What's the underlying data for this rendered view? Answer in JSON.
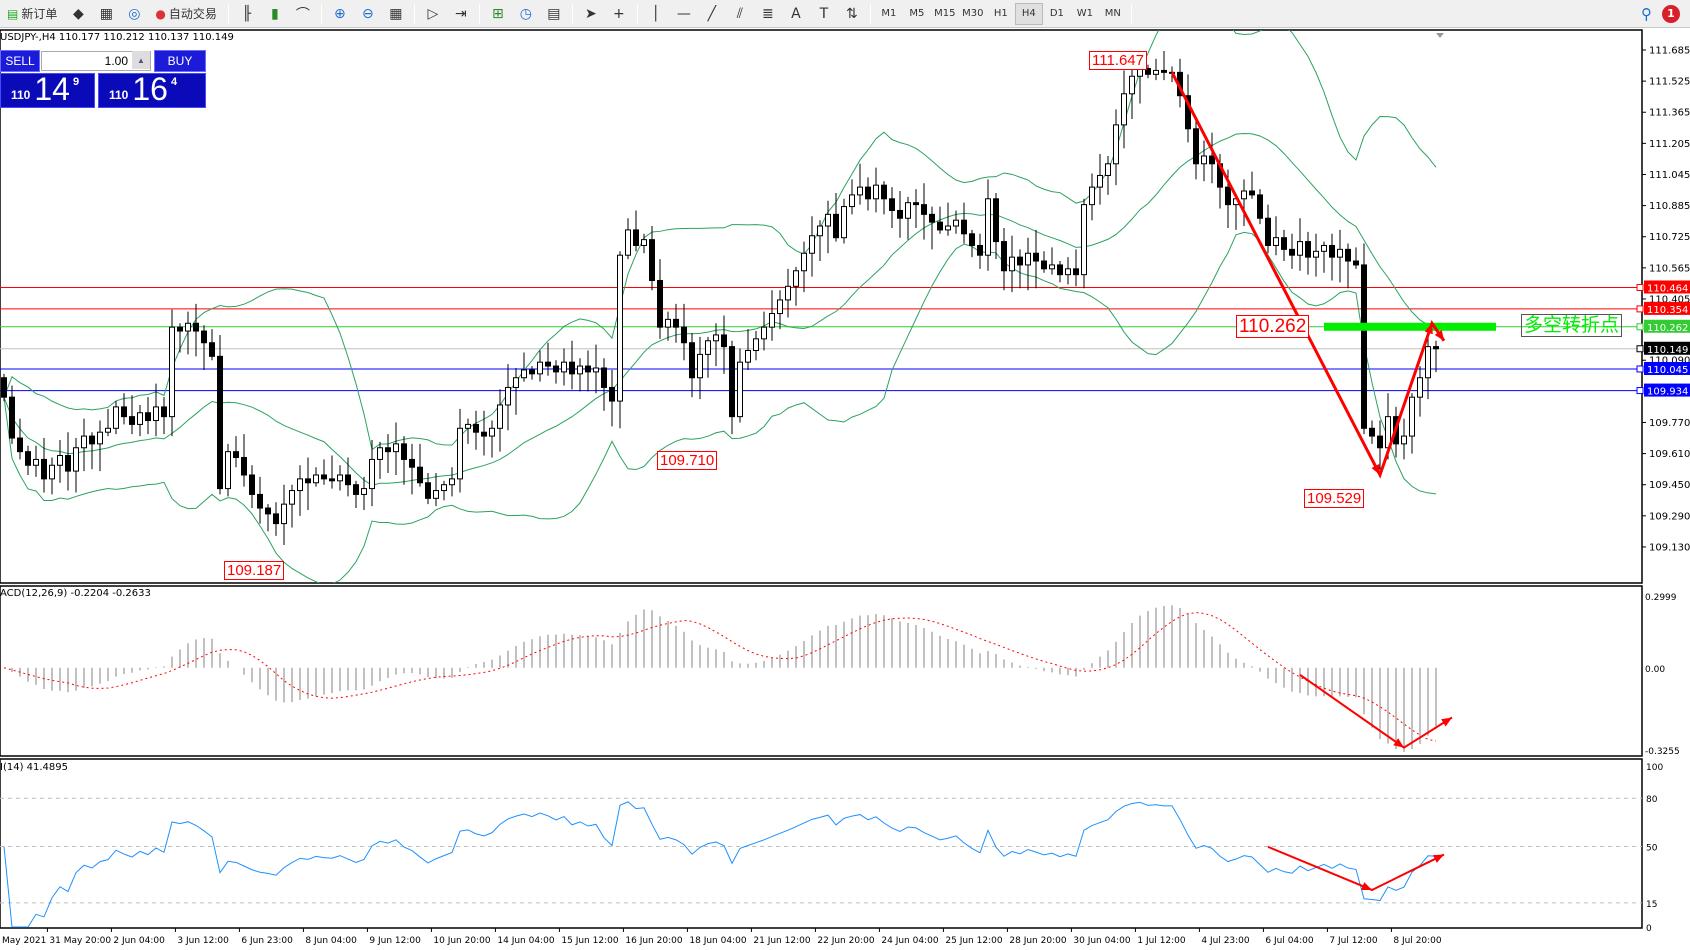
{
  "toolbar": {
    "new_order": "新订单",
    "auto_trading": "自动交易",
    "icons_left": [
      "market-watch-icon",
      "data-window-icon",
      "signals-icon"
    ],
    "icons_mid": [
      "bar-chart-icon",
      "candlestick-icon",
      "line-chart-icon",
      "|",
      "zoom-in-icon",
      "zoom-out-icon",
      "tile-windows-icon",
      "|",
      "auto-scroll-icon",
      "chart-shift-icon",
      "|",
      "indicators-icon",
      "periods-icon",
      "templates-icon",
      "|",
      "cursor-icon",
      "crosshair-icon",
      "|",
      "vertical-line-icon",
      "horizontal-line-icon",
      "trendline-icon",
      "equidistant-channel-icon",
      "fibonacci-icon",
      "text-icon",
      "text-label-icon",
      "arrows-icon"
    ],
    "timeframes": [
      "M1",
      "M5",
      "M15",
      "M30",
      "H1",
      "H4",
      "D1",
      "W1",
      "MN"
    ],
    "active_timeframe": "H4",
    "notification_count": "1"
  },
  "chart": {
    "header": "USDJPY-,H4  110.177 110.212 110.137 110.149",
    "macd_label": "ACD(12,26,9) -0.2204 -0.2633",
    "rsi_label": "I(14) 41.4895"
  },
  "trade_panel": {
    "sell_label": "SELL",
    "buy_label": "BUY",
    "lot": "1.00",
    "sell_prefix": "110",
    "sell_big": "14",
    "sell_sup": "9",
    "buy_prefix": "110",
    "buy_big": "16",
    "buy_sup": "4"
  },
  "chart_data": {
    "type": "candlestick",
    "first_open": 110.0,
    "closes": [
      109.9,
      109.69,
      109.62,
      109.55,
      109.58,
      109.48,
      109.55,
      109.6,
      109.52,
      109.64,
      109.7,
      109.66,
      109.72,
      109.74,
      109.85,
      109.8,
      109.76,
      109.82,
      109.78,
      109.85,
      109.8,
      110.26,
      110.24,
      110.28,
      110.24,
      110.18,
      110.11,
      109.43,
      109.62,
      109.59,
      109.5,
      109.4,
      109.33,
      109.3,
      109.25,
      109.35,
      109.42,
      109.48,
      109.46,
      109.5,
      109.48,
      109.47,
      109.5,
      109.45,
      109.4,
      109.43,
      109.58,
      109.64,
      109.62,
      109.66,
      109.58,
      109.54,
      109.46,
      109.38,
      109.42,
      109.45,
      109.48,
      109.74,
      109.76,
      109.72,
      109.7,
      109.74,
      109.86,
      109.95,
      110.0,
      110.04,
      110.02,
      110.08,
      110.06,
      110.03,
      110.08,
      110.02,
      110.06,
      110.03,
      110.05,
      109.95,
      109.88,
      110.63,
      110.76,
      110.68,
      110.71,
      110.5,
      110.26,
      110.3,
      110.26,
      110.18,
      110.0,
      110.12,
      110.19,
      110.22,
      110.16,
      109.8,
      110.08,
      110.14,
      110.2,
      110.26,
      110.33,
      110.4,
      110.47,
      110.55,
      110.64,
      110.73,
      110.78,
      110.84,
      110.72,
      110.88,
      110.94,
      110.98,
      110.92,
      110.99,
      110.92,
      110.86,
      110.82,
      110.9,
      110.89,
      110.84,
      110.8,
      110.76,
      110.78,
      110.81,
      110.74,
      110.68,
      110.63,
      110.92,
      110.7,
      110.55,
      110.62,
      110.58,
      110.64,
      110.6,
      110.56,
      110.58,
      110.53,
      110.56,
      110.53,
      110.89,
      110.98,
      111.04,
      111.1,
      111.3,
      111.46,
      111.55,
      111.59,
      111.56,
      111.58,
      111.57,
      111.57,
      111.45,
      111.28,
      111.1,
      111.14,
      111.1,
      110.98,
      110.89,
      110.92,
      110.96,
      110.94,
      110.82,
      110.68,
      110.72,
      110.66,
      110.63,
      110.7,
      110.62,
      110.65,
      110.68,
      110.62,
      110.66,
      110.6,
      110.58,
      109.74,
      109.7,
      109.64,
      109.8,
      109.66,
      109.7,
      109.9,
      110.0,
      110.16,
      110.149
    ],
    "extremes": [
      {
        "bar": 142,
        "price": 111.647,
        "kind": "high",
        "label": "111.647"
      },
      {
        "bar": 34,
        "price": 109.187,
        "kind": "low",
        "label": "109.187"
      },
      {
        "bar": 91,
        "price": 109.71,
        "kind": "low",
        "label": "109.710"
      },
      {
        "bar": 172,
        "price": 109.529,
        "kind": "low",
        "label": "109.529"
      }
    ],
    "price_axis": {
      "range": [
        109.13,
        111.685
      ],
      "ticks": [
        "111.685",
        "111.525",
        "111.365",
        "111.205",
        "111.045",
        "110.885",
        "110.725",
        "110.565",
        "110.405",
        "110.090",
        "109.770",
        "109.610",
        "109.450",
        "109.290",
        "109.130"
      ]
    },
    "horizontal_lines": [
      {
        "price": 110.464,
        "label": "110.464",
        "color": "#ff0000"
      },
      {
        "price": 110.354,
        "label": "110.354",
        "color": "#ff0000"
      },
      {
        "price": 110.262,
        "label": "110.262",
        "color": "#33cc33"
      },
      {
        "price": 110.149,
        "label": "110.149",
        "color": "#000000",
        "line_color": "#c0c0c0"
      },
      {
        "price": 110.045,
        "label": "110.045",
        "color": "#0000ff"
      },
      {
        "price": 109.934,
        "label": "109.934",
        "color": "#0000ff"
      }
    ],
    "level_label": {
      "price": 110.262,
      "bar": 163,
      "label": "110.262"
    },
    "pivot_zone": {
      "price": 110.262,
      "from_bar": 165,
      "to_bar": 186.5,
      "color": "#00ee00",
      "text": "多空转折点"
    },
    "arrows_price": [
      [
        146,
        111.57
      ],
      [
        172,
        109.5
      ],
      [
        178.5,
        110.28
      ],
      [
        180,
        110.19
      ]
    ],
    "arrows_macd": [
      [
        162,
        -0.028
      ],
      [
        175,
        -0.316
      ],
      [
        181,
        -0.197
      ]
    ],
    "arrows_rsi": [
      [
        158,
        49.8
      ],
      [
        171,
        23
      ],
      [
        180,
        45
      ]
    ],
    "bollinger": {
      "period": 20,
      "deviation": 2,
      "color": "#2ca25f"
    },
    "macd": {
      "fast": 12,
      "slow": 26,
      "signal": 9,
      "value": -0.2204,
      "signal_value": -0.2633,
      "range": [
        -0.3255,
        0.2999
      ],
      "ticks": [
        "0.2999",
        "0.00",
        "-0.3255"
      ]
    },
    "rsi": {
      "period": 14,
      "value": 41.4895,
      "range": [
        0,
        100
      ],
      "levels": [
        80,
        50,
        15
      ],
      "ticks": [
        "100",
        "80",
        "50",
        "15",
        "0"
      ],
      "color": "#1e90ff"
    },
    "time_labels": [
      "May 2021",
      "31 May 20:00",
      "2 Jun 04:00",
      "3 Jun 12:00",
      "6 Jun 23:00",
      "8 Jun 04:00",
      "9 Jun 12:00",
      "10 Jun 20:00",
      "14 Jun 04:00",
      "15 Jun 12:00",
      "16 Jun 20:00",
      "18 Jun 04:00",
      "21 Jun 12:00",
      "22 Jun 20:00",
      "24 Jun 04:00",
      "25 Jun 12:00",
      "28 Jun 20:00",
      "30 Jun 04:00",
      "1 Jul 12:00",
      "4 Jul 23:00",
      "6 Jul 04:00",
      "7 Jul 12:00",
      "8 Jul 20:00"
    ]
  }
}
